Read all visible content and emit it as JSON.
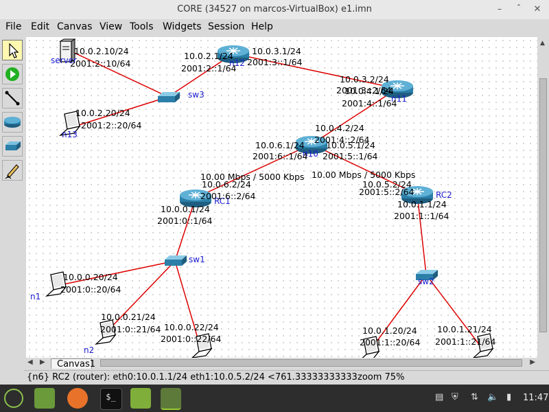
{
  "window": {
    "title": "CORE (34527 on marcos-VirtualBox) e1.imn"
  },
  "menu": [
    "File",
    "Edit",
    "Canvas",
    "View",
    "Tools",
    "Widgets",
    "Session",
    "Help"
  ],
  "toolbar": [
    "select-tool",
    "start-session-tool",
    "link-tool",
    "network-layer-tool",
    "link-layer-tool",
    "annotation-tool"
  ],
  "canvas": {
    "tab": "Canvas1",
    "nodes": {
      "server": "server",
      "n12": "n12",
      "n11": "n11",
      "n10": "n10",
      "rc1": "RC1",
      "rc2": "RC2",
      "sw3": "sw3",
      "sw1": "sw1",
      "sw2": "sw2",
      "n13": "n13",
      "n1": "n1",
      "n2": "n2"
    },
    "labels": {
      "server_ip4": "10.0.2.10/24",
      "server_ip6": "2001:2::10/64",
      "n12_a_ip4": "10.0.2.1/24",
      "n12_a_ip6": "2001:2::1/64",
      "n12_b_ip4": "10.0.3.1/24",
      "n12_b_ip6": "2001:3::1/64",
      "n11_a_ip4": "10.0.3.2/24",
      "n11_a_ip6": "2001:3::2/64",
      "n11_b_ip4": "10.0.4.1/24",
      "n11_b_ip6": "2001:4::1/64",
      "n13_ip4": "10.0.2.20/24",
      "n13_ip6": "2001:2::20/64",
      "n10_a_ip4": "10.0.4.2/24",
      "n10_a_ip6": "2001:4::2/64",
      "n10_b_ip4": "10.0.6.1/24",
      "n10_b_ip6": "2001:6::1/64",
      "n10_c_ip4": "10.0.5.1/24",
      "n10_c_ip6": "2001:5::1/64",
      "link_rate_1": "10.00 Mbps / 5000 Kbps",
      "link_rate_2": "10.00 Mbps / 5000 Kbps",
      "rc1_a_ip4": "10.0.6.2/24",
      "rc1_a_ip6": "2001:6::2/64",
      "rc1_b_ip4": "10.0.0.1/24",
      "rc1_b_ip6": "2001:0::1/64",
      "rc2_a_ip4": "10.0.5.2/24",
      "rc2_a_ip6": "2001:5::2/64",
      "rc2_b_ip4": "10.0.1.1/24",
      "rc2_b_ip6": "2001:1::1/64",
      "n1_ip4": "10.0.0.20/24",
      "n1_ip6": "2001:0::20/64",
      "n2_ip4": "10.0.0.21/24",
      "n2_ip6": "2001:0::21/64",
      "n3_ip4": "10.0.0.22/24",
      "n3_ip6": "2001:0::22/64",
      "n5_ip4": "10.0.1.20/24",
      "n5_ip6": "2001:1::20/64",
      "n6_ip4": "10.0.1.21/24",
      "n6_ip6": "2001:1::21/64"
    }
  },
  "status": {
    "text": "{n6} RC2 (router): eth0:10.0.1.1/24 eth1:10.0.5.2/24 <761.3333333333334",
    "zoom": "zoom 75%"
  },
  "taskbar": {
    "clock": "11:47"
  },
  "colors": {
    "link": "#dd0000",
    "node_label": "#1a1ad0",
    "router": "#2b7fa8"
  }
}
